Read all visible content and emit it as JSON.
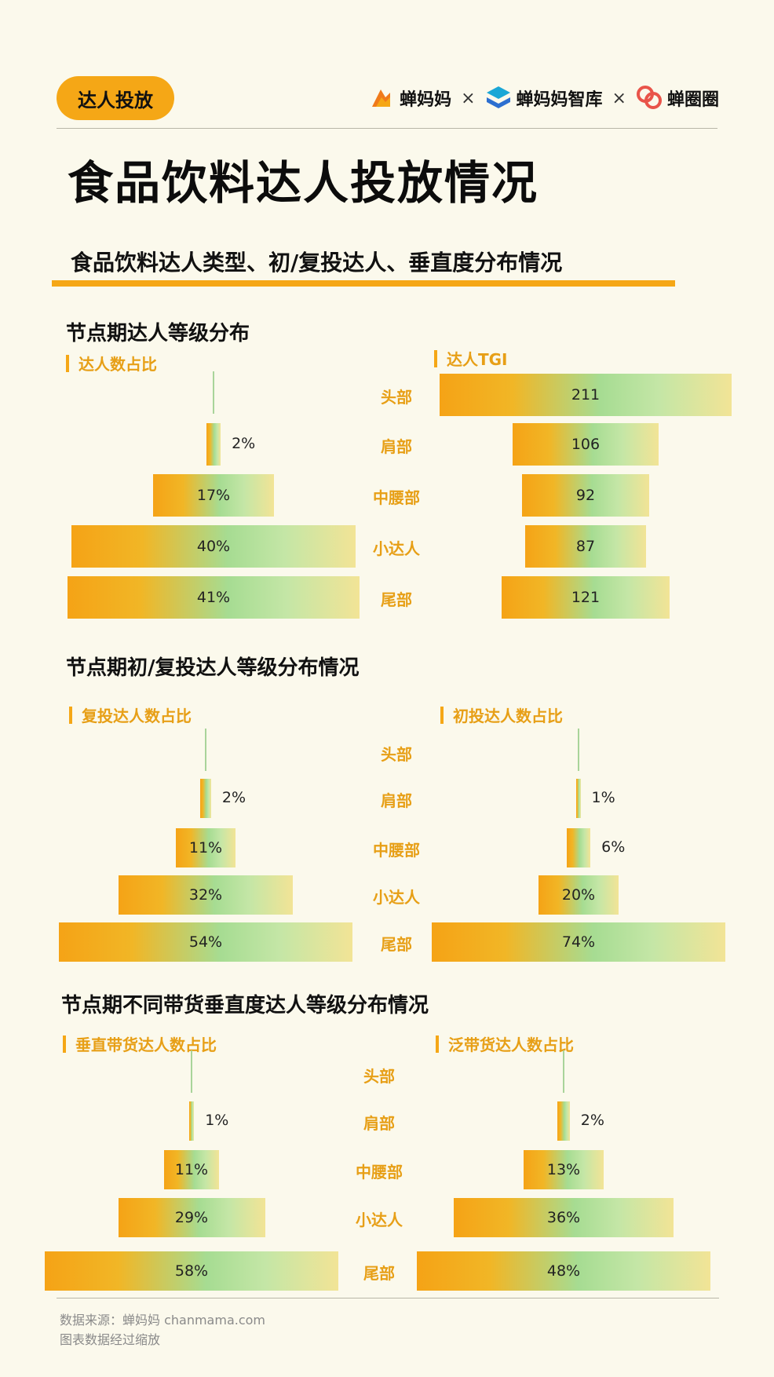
{
  "header": {
    "tag": "达人投放",
    "brands": [
      "蝉妈妈",
      "蝉妈妈智库",
      "蝉圈圈"
    ],
    "separator": "×",
    "title": "食品饮料达人投放情况",
    "subtitle": "食品饮料达人类型、初/复投达人、垂直度分布情况"
  },
  "colors": {
    "accent": "#f5a716",
    "label": "#e79f16",
    "background": "#fbf9ec"
  },
  "chart_data": [
    {
      "type": "bar",
      "section_title": "节点期达人等级分布",
      "title": "达人数占比",
      "categories": [
        "头部",
        "肩部",
        "中腰部",
        "小达人",
        "尾部"
      ],
      "values": [
        0,
        2,
        17,
        40,
        41
      ],
      "display": [
        "",
        "2%",
        "17%",
        "40%",
        "41%"
      ],
      "unit": "%"
    },
    {
      "type": "bar",
      "title": "达人TGI",
      "categories": [
        "头部",
        "肩部",
        "中腰部",
        "小达人",
        "尾部"
      ],
      "values": [
        211,
        106,
        92,
        87,
        121
      ],
      "display": [
        "211",
        "106",
        "92",
        "87",
        "121"
      ]
    },
    {
      "type": "bar",
      "section_title": "节点期初/复投达人等级分布情况",
      "title": "复投达人数占比",
      "categories": [
        "头部",
        "肩部",
        "中腰部",
        "小达人",
        "尾部"
      ],
      "values": [
        0,
        2,
        11,
        32,
        54
      ],
      "display": [
        "",
        "2%",
        "11%",
        "32%",
        "54%"
      ],
      "unit": "%"
    },
    {
      "type": "bar",
      "title": "初投达人数占比",
      "categories": [
        "头部",
        "肩部",
        "中腰部",
        "小达人",
        "尾部"
      ],
      "values": [
        0,
        1,
        6,
        20,
        74
      ],
      "display": [
        "",
        "1%",
        "6%",
        "20%",
        "74%"
      ],
      "unit": "%"
    },
    {
      "type": "bar",
      "section_title": "节点期不同带货垂直度达人等级分布情况",
      "title": "垂直带货达人数占比",
      "categories": [
        "头部",
        "肩部",
        "中腰部",
        "小达人",
        "尾部"
      ],
      "values": [
        0,
        1,
        11,
        29,
        58
      ],
      "display": [
        "",
        "1%",
        "11%",
        "29%",
        "58%"
      ],
      "unit": "%"
    },
    {
      "type": "bar",
      "title": "泛带货达人数占比",
      "categories": [
        "头部",
        "肩部",
        "中腰部",
        "小达人",
        "尾部"
      ],
      "values": [
        0,
        2,
        13,
        36,
        48
      ],
      "display": [
        "",
        "2%",
        "13%",
        "36%",
        "48%"
      ],
      "unit": "%"
    }
  ],
  "footer": {
    "source": "数据来源：蝉妈妈 chanmama.com",
    "note": "图表数据经过缩放"
  }
}
